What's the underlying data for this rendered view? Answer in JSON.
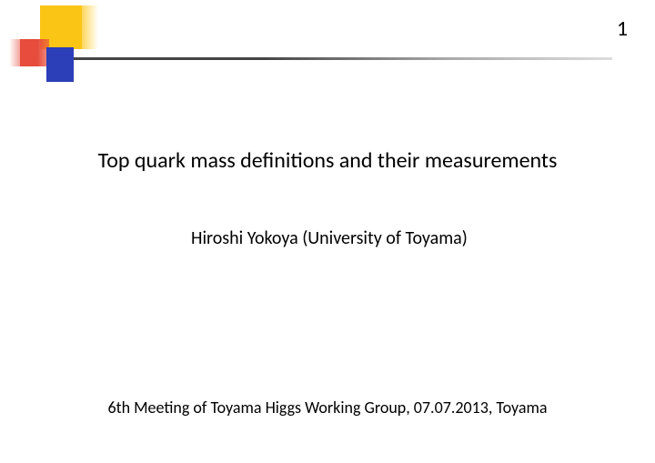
{
  "page_number": "1",
  "title": "Top quark mass definitions and their measurements",
  "author": "Hiroshi Yokoya (University of Toyama)",
  "footer": "6th Meeting of Toyama Higgs Working Group, 07.07.2013, Toyama",
  "decoration": {
    "colors": {
      "yellow": "#fbc515",
      "red": "#e74c3c",
      "blue": "#2c3eb8",
      "line_start": "#444444",
      "line_end": "#dddddd",
      "background": "#ffffff",
      "text": "#000000"
    }
  }
}
